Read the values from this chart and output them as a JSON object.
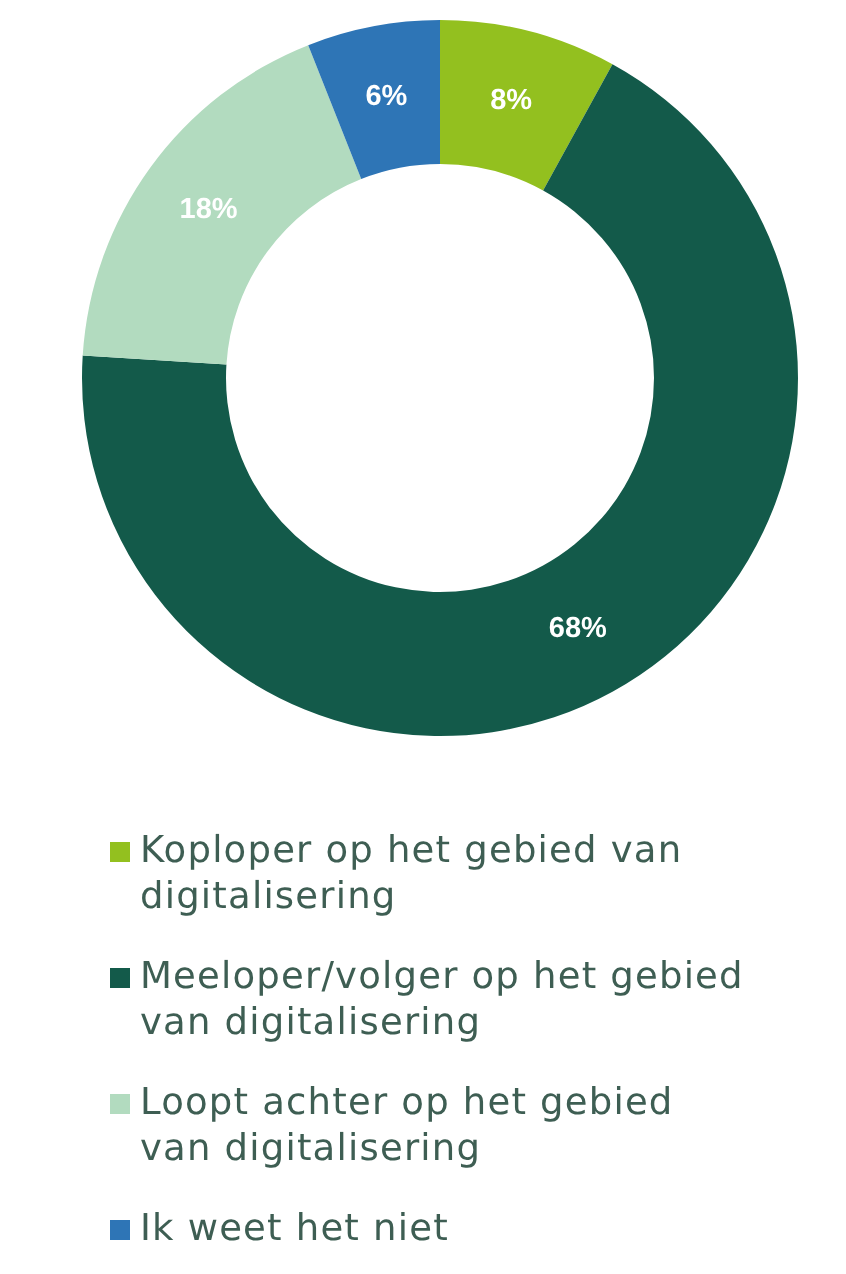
{
  "chart_data": {
    "type": "donut",
    "categories": [
      "Koploper op het gebied van digitalisering",
      "Meeloper/volger op het gebied van digitalisering",
      "Loopt achter op het gebied van digitalisering",
      "Ik weet het niet"
    ],
    "values": [
      8,
      68,
      18,
      6
    ],
    "colors": [
      "#93c01f",
      "#135a4a",
      "#b2dbbf",
      "#2e75b6"
    ],
    "value_labels": [
      "8%",
      "68%",
      "18%",
      "6%"
    ],
    "legend": "bottom"
  }
}
